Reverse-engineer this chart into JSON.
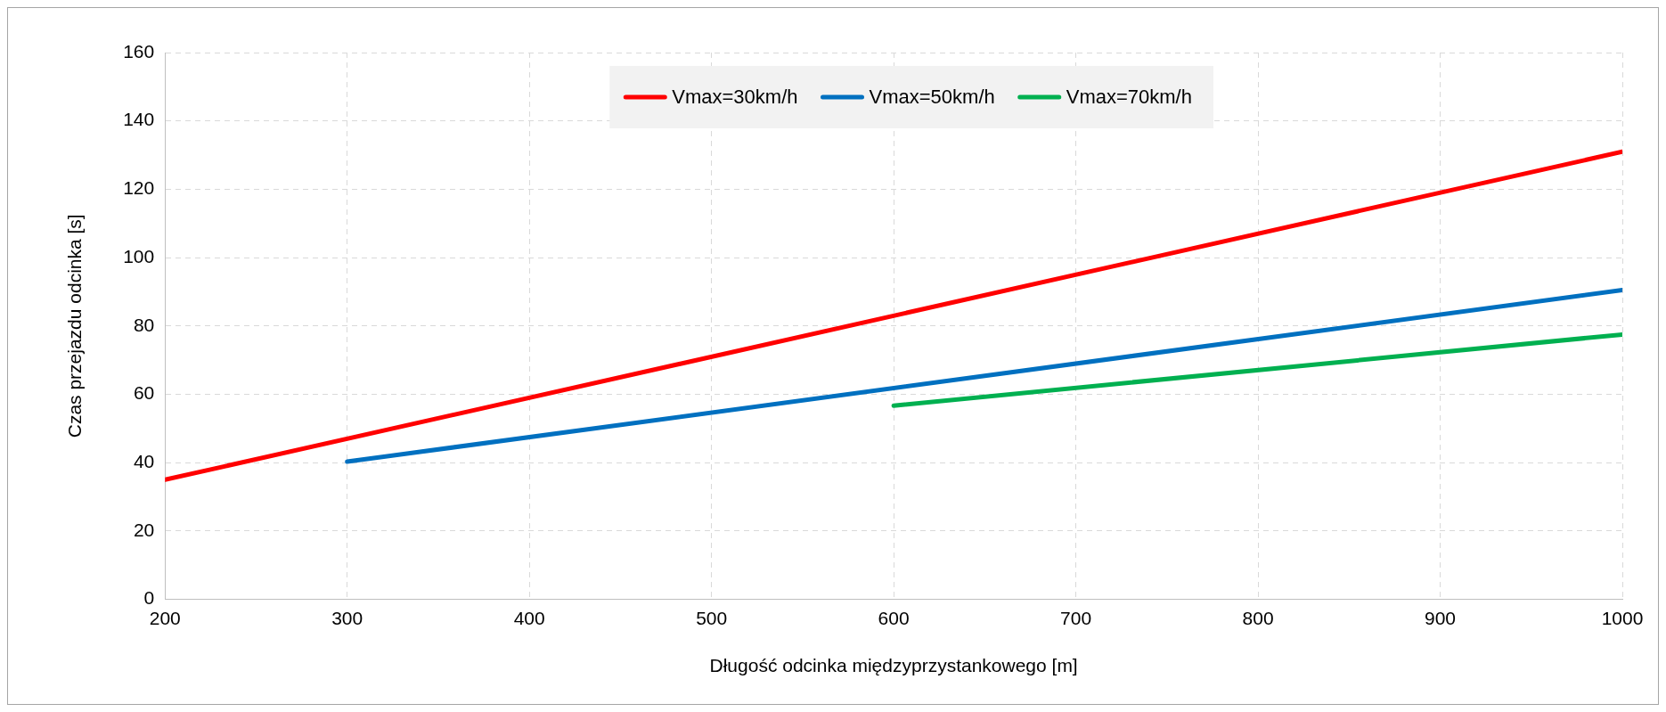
{
  "chart_data": {
    "type": "line",
    "xlabel": "Długość odcinka międzyprzystankowego [m]",
    "ylabel": "Czas przejazdu odcinka [s]",
    "xlim": [
      200,
      1000
    ],
    "xticks": [
      200,
      300,
      400,
      500,
      600,
      700,
      800,
      900,
      1000
    ],
    "ylim": [
      0,
      160
    ],
    "yticks": [
      0,
      20,
      40,
      60,
      80,
      100,
      120,
      140,
      160
    ],
    "grid": true,
    "legend": "top",
    "marker": "none",
    "line_style": "solid",
    "series": [
      {
        "name": "Vmax=30km/h",
        "color": "#ff0000",
        "x": [
          200,
          1000
        ],
        "values": [
          35,
          131
        ]
      },
      {
        "name": "Vmax=50km/h",
        "color": "#0070c0",
        "x": [
          300,
          1000
        ],
        "values": [
          40.3,
          90.5
        ]
      },
      {
        "name": "Vmax=70km/h",
        "color": "#00b050",
        "x": [
          600,
          1000
        ],
        "values": [
          56.7,
          77.5
        ]
      }
    ]
  }
}
